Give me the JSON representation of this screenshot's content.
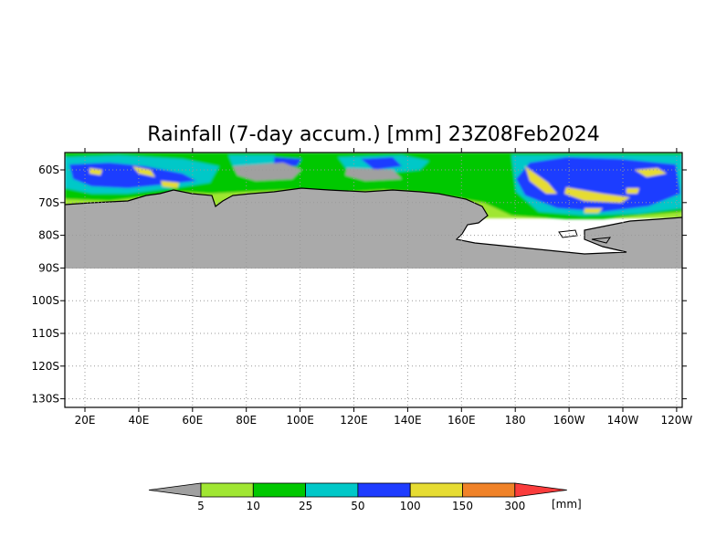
{
  "title": "Rainfall (7-day accum.) [mm] 23Z08Feb2024",
  "lat_labels": [
    "60S",
    "70S",
    "80S",
    "90S",
    "100S",
    "110S",
    "120S",
    "130S"
  ],
  "lon_labels": [
    "20E",
    "40E",
    "60E",
    "80E",
    "100E",
    "120E",
    "140E",
    "160E",
    "180",
    "160W",
    "140W",
    "120W"
  ],
  "colorbar": {
    "unit": "[mm]",
    "levels": [
      "5",
      "10",
      "25",
      "50",
      "100",
      "150",
      "300"
    ],
    "colors": [
      "#a0a0a0",
      "#a0e632",
      "#00c800",
      "#00c8c8",
      "#1e3cff",
      "#e6dc32",
      "#f08228",
      "#fa3c3c"
    ]
  },
  "colors": {
    "land": "#aaaaaa",
    "below_threshold": "#a0a0a0",
    "grid": "#999999"
  }
}
